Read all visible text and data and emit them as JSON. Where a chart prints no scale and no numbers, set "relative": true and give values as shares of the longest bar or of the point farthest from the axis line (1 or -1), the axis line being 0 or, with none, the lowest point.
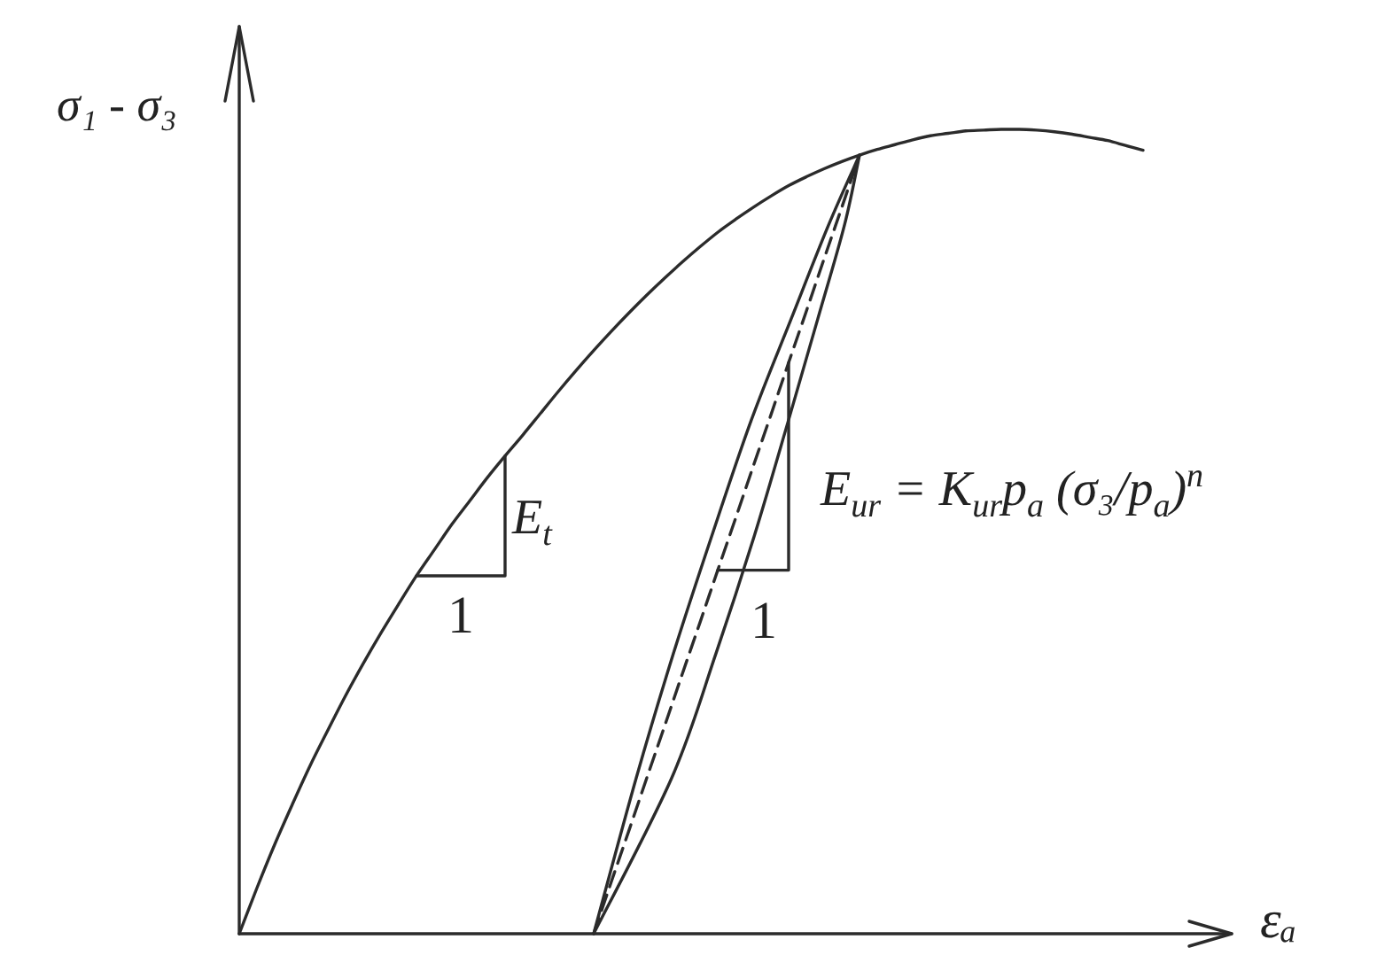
{
  "chart_data": {
    "type": "line",
    "relative": true,
    "xlabel": "εₐ",
    "ylabel": "σ₁ - σ₃",
    "marker": "none",
    "line_style": "solid",
    "categories": [
      null,
      null,
      null,
      null,
      null,
      null,
      null,
      null,
      null,
      null,
      null,
      null,
      null,
      null,
      null,
      null,
      null,
      null,
      null,
      null,
      null,
      null,
      null,
      null,
      null,
      null,
      null,
      null,
      null,
      null,
      null,
      null,
      null,
      null,
      null,
      null,
      null,
      null,
      null,
      null,
      null,
      null,
      null,
      null,
      null,
      null,
      null,
      null,
      null,
      null,
      null,
      null,
      null,
      null,
      null,
      null,
      null
    ],
    "series": [
      {
        "color": "#2b2b2b",
        "values": [
          0,
          0.057,
          0.111,
          0.161,
          0.209,
          0.253,
          0.296,
          0.336,
          0.374,
          0.41,
          0.445,
          0.477,
          0.509,
          0.538,
          0.567,
          0.594,
          0.62,
          0.647,
          0.674,
          0.7,
          0.725,
          0.749,
          0.772,
          0.794,
          0.815,
          0.835,
          0.854,
          0.872,
          0.888,
          0.903,
          0.917,
          0.93,
          0.941,
          0.951,
          0.96,
          0.968,
          0.975,
          0.981,
          0.987,
          0.992,
          0.995,
          0.998,
          0.999,
          1,
          1,
          0.999,
          0.997,
          0.994,
          0.99,
          0.986,
          0.98,
          0.974,
          null,
          null,
          null,
          null,
          null
        ]
      },
      {
        "color": "#2b2b2b",
        "line_style": "dashed",
        "values": [
          null,
          null,
          null,
          null,
          null,
          null,
          null,
          null,
          null,
          null,
          null,
          null,
          null,
          null,
          null,
          null,
          null,
          null,
          null,
          null,
          0,
          0.065,
          0.129,
          0.194,
          0.258,
          0.323,
          0.387,
          0.452,
          0.516,
          0.581,
          0.645,
          0.71,
          0.774,
          0.839,
          0.903,
          0.968,
          null,
          null,
          null,
          null,
          null,
          null,
          null,
          null,
          null,
          null,
          null,
          null,
          null,
          null,
          null,
          null,
          null,
          null,
          null,
          null,
          null
        ]
      }
    ],
    "annotations": [
      "E$_{t}$",
      "1",
      "E$_{ur}$ = K$_{ur}$p$_{a}$ (σ₃/p$_{a}$)$^{n}$",
      "1"
    ]
  }
}
